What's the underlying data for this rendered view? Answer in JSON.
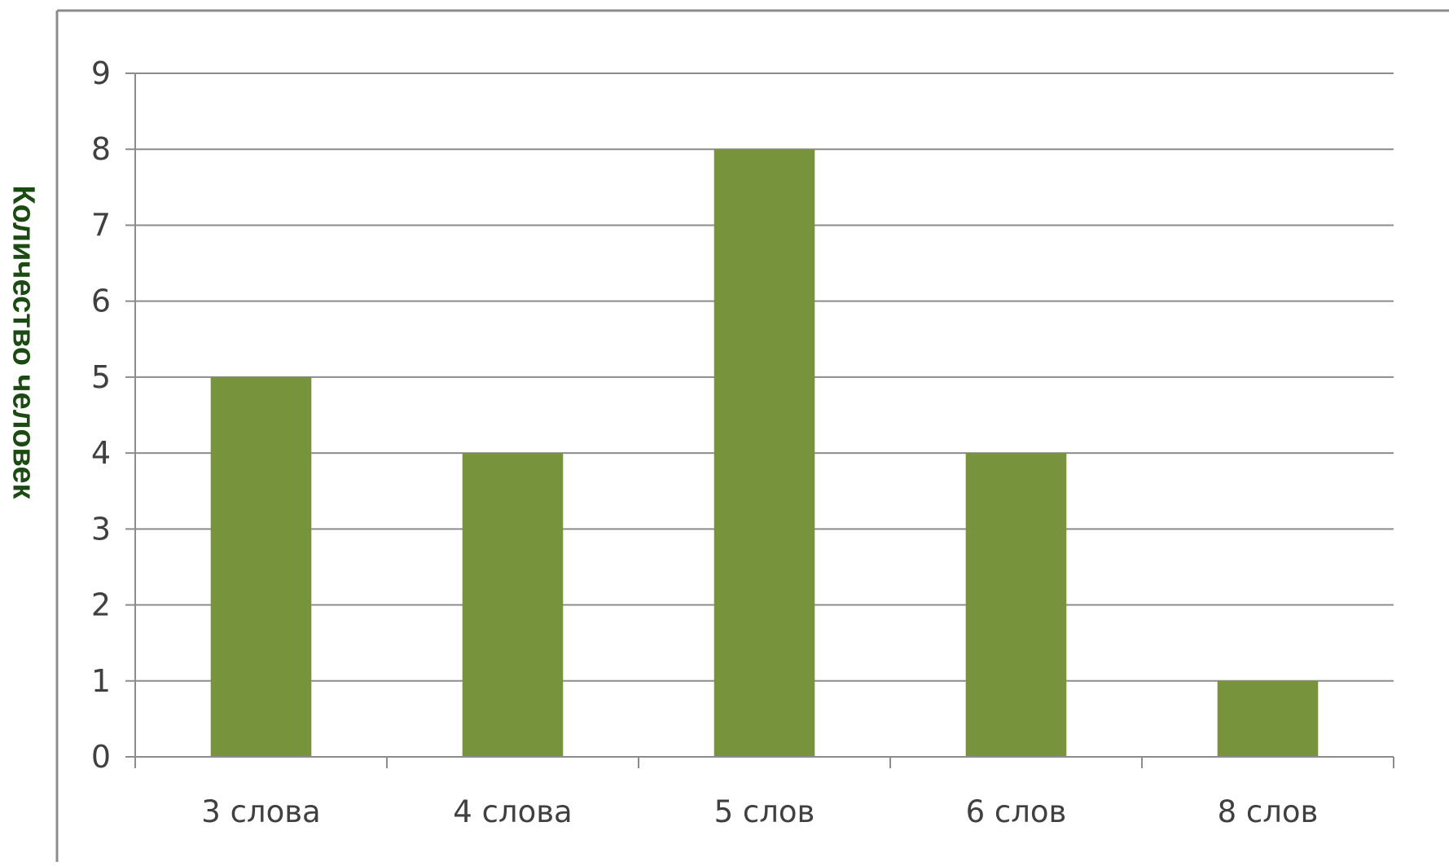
{
  "chart_data": {
    "type": "bar",
    "categories": [
      "3 слова",
      "4 слова",
      "5 слов",
      "6 слов",
      "8 слов"
    ],
    "values": [
      5,
      4,
      8,
      4,
      1
    ],
    "ylabel": "Количество человек",
    "xlabel": "",
    "ylim": [
      0,
      9
    ],
    "yticks": [
      "0",
      "1",
      "2",
      "3",
      "4",
      "5",
      "6",
      "7",
      "8",
      "9"
    ],
    "grid": true,
    "legend": "none",
    "bar_color": "#77933c",
    "grid_color": "#8c8c8c",
    "frame_color": "#8c8c8c",
    "ylabel_color": "#1b4a12",
    "text_color": "#404040"
  }
}
